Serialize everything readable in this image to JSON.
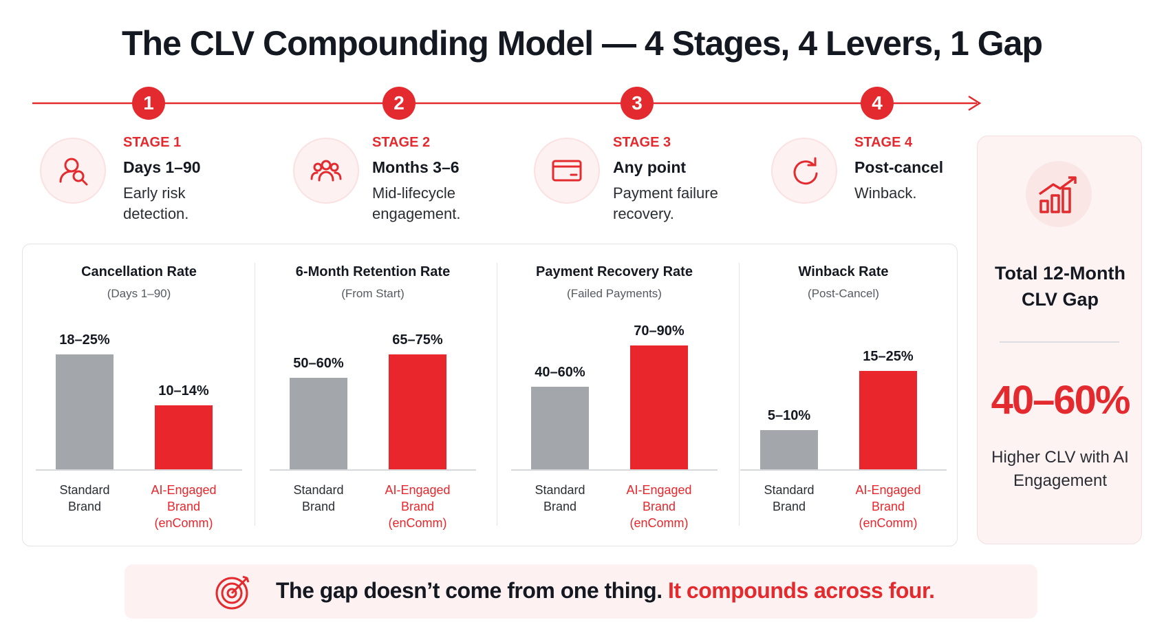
{
  "title": "The CLV Compounding Model — 4 Stages, 4 Levers, 1 Gap",
  "stages": [
    {
      "number": 1,
      "label": "STAGE 1",
      "period": "Days 1–90",
      "description": "Early risk detection."
    },
    {
      "number": 2,
      "label": "STAGE 2",
      "period": "Months 3–6",
      "description": "Mid-lifecycle engagement."
    },
    {
      "number": 3,
      "label": "STAGE 3",
      "period": "Any point",
      "description": "Payment failure recovery."
    },
    {
      "number": 4,
      "label": "STAGE 4",
      "period": "Post-cancel",
      "description": "Winback."
    }
  ],
  "chart_data": [
    {
      "type": "bar",
      "title": "Cancellation Rate",
      "subtitle": "(Days 1–90)",
      "categories": [
        "Standard Brand",
        "AI-Engaged Brand (enComm)"
      ],
      "values": [
        [
          18,
          25
        ],
        [
          10,
          14
        ]
      ],
      "value_labels": [
        "18–25%",
        "10–14%"
      ],
      "colors": [
        "#a3a6ab",
        "#e8262b"
      ],
      "ylim": [
        0,
        30
      ]
    },
    {
      "type": "bar",
      "title": "6-Month Retention Rate",
      "subtitle": "(From Start)",
      "categories": [
        "Standard Brand",
        "AI-Engaged Brand (enComm)"
      ],
      "values": [
        [
          50,
          60
        ],
        [
          65,
          75
        ]
      ],
      "value_labels": [
        "50–60%",
        "65–75%"
      ],
      "colors": [
        "#a3a6ab",
        "#e8262b"
      ],
      "ylim": [
        0,
        90
      ]
    },
    {
      "type": "bar",
      "title": "Payment Recovery Rate",
      "subtitle": "(Failed Payments)",
      "categories": [
        "Standard Brand",
        "AI-Engaged Brand (enComm)"
      ],
      "values": [
        [
          40,
          60
        ],
        [
          70,
          90
        ]
      ],
      "value_labels": [
        "40–60%",
        "70–90%"
      ],
      "colors": [
        "#a3a6ab",
        "#e8262b"
      ],
      "ylim": [
        0,
        100
      ]
    },
    {
      "type": "bar",
      "title": "Winback Rate",
      "subtitle": "(Post-Cancel)",
      "categories": [
        "Standard Brand",
        "AI-Engaged Brand (enComm)"
      ],
      "values": [
        [
          5,
          10
        ],
        [
          15,
          25
        ]
      ],
      "value_labels": [
        "5–10%",
        "15–25%"
      ],
      "colors": [
        "#a3a6ab",
        "#e8262b"
      ],
      "ylim": [
        0,
        35
      ]
    }
  ],
  "summary": {
    "title": "Total 12-Month CLV Gap",
    "value": "40–60%",
    "caption": "Higher CLV with AI Engagement"
  },
  "footer": {
    "lead": "The gap doesn’t come from one thing.",
    "emphasis": "It compounds across four."
  }
}
